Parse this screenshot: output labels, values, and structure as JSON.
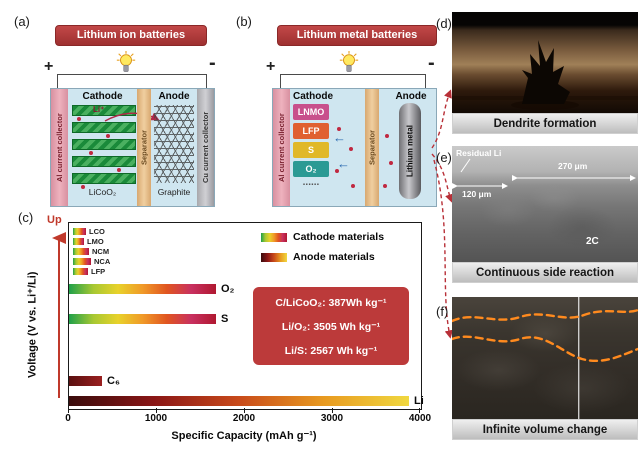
{
  "panel_a": {
    "label": "(a)",
    "title": "Lithium ion batteries",
    "plus": "+",
    "minus": "-",
    "cathode": "Cathode",
    "anode": "Anode",
    "al_collector": "Al current collector",
    "cu_collector": "Cu current collector",
    "separator": "Separator",
    "cathode_material": "LiCoO₂",
    "anode_material": "Graphite",
    "ion": "Li⁺"
  },
  "panel_b": {
    "label": "(b)",
    "title": "Lithium metal batteries",
    "plus": "+",
    "minus": "-",
    "cathode": "Cathode",
    "anode": "Anode",
    "al_collector": "Al current collector",
    "separator": "Separator",
    "anode_material": "Lithium metal",
    "cathode_items": [
      "LNMO",
      "LFP",
      "S",
      "O₂"
    ],
    "ellipsis": "......",
    "arrow": "←"
  },
  "panel_c": {
    "label": "(c)",
    "up": "Up"
  },
  "chart_data": {
    "type": "bar",
    "orientation": "horizontal",
    "xlabel": "Specific Capacity (mAh g⁻¹)",
    "ylabel": "Voltage (V vs. Li⁺/Li)",
    "xlim": [
      0,
      4000
    ],
    "xticks": [
      "0",
      "1000",
      "2000",
      "3000",
      "4000"
    ],
    "legend": [
      {
        "label": "Cathode materials"
      },
      {
        "label": "Anode materials"
      }
    ],
    "series": [
      {
        "name": "LCO",
        "capacity": 150,
        "group": "cathode"
      },
      {
        "name": "LMO",
        "capacity": 120,
        "group": "cathode"
      },
      {
        "name": "NCM",
        "capacity": 180,
        "group": "cathode"
      },
      {
        "name": "NCA",
        "capacity": 200,
        "group": "cathode"
      },
      {
        "name": "LFP",
        "capacity": 170,
        "group": "cathode"
      },
      {
        "name": "O₂",
        "capacity": 1675,
        "group": "cathode"
      },
      {
        "name": "S",
        "capacity": 1675,
        "group": "cathode"
      },
      {
        "name": "C₆",
        "capacity": 372,
        "group": "anode"
      },
      {
        "name": "Li",
        "capacity": 3860,
        "group": "anode"
      }
    ],
    "annotations": [
      "C/LiCoO₂: 387Wh kg⁻¹",
      "Li/O₂: 3505 Wh kg⁻¹",
      "Li/S: 2567 Wh kg⁻¹"
    ]
  },
  "panel_d": {
    "label": "(d)",
    "caption": "Dendrite formation"
  },
  "panel_e": {
    "label": "(e)",
    "caption": "Continuous side reaction",
    "residual": "Residual Li",
    "width_left": "120 μm",
    "width_right": "270 μm",
    "rate": "2C"
  },
  "panel_f": {
    "label": "(f)",
    "caption": "Infinite volume change"
  },
  "colors": {
    "title_red": "#b03838",
    "energy_box_red": "#bc3a3a",
    "dashed_arrow_red": "#b83038",
    "boundary_orange": "#ff8a1e"
  }
}
